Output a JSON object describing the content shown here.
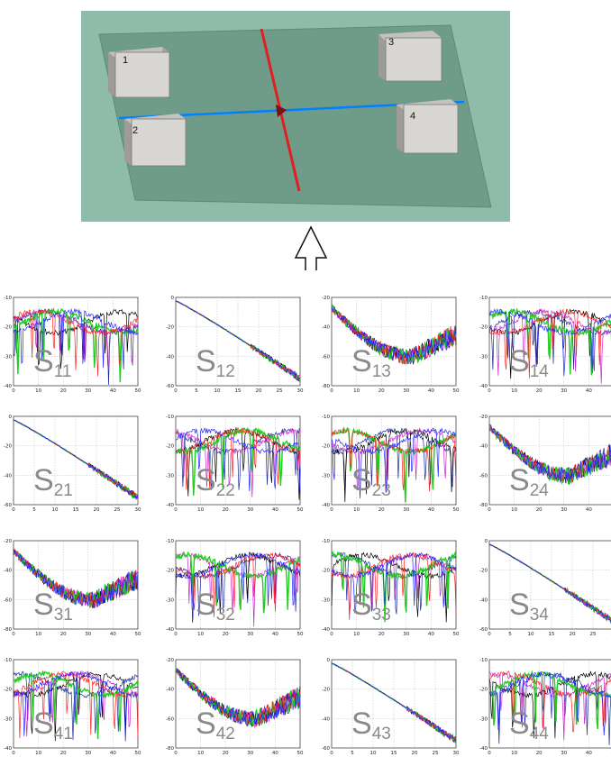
{
  "scene": {
    "ports": [
      "1",
      "2",
      "3",
      "4"
    ],
    "colors": {
      "board": "#6f9c88",
      "board_panel": "#8fbcaa",
      "board_line": "#0080ff",
      "cut_line": "#e02020",
      "box_front": "#d8d6d2",
      "box_top": "#c4c2be",
      "box_side": "#a8a6a2"
    }
  },
  "plots": [
    {
      "id": "S11",
      "label_main": "S",
      "label_sub": "11",
      "type": "osc",
      "ytop": -10,
      "ybot": -40,
      "yticks": [
        "-10",
        "-20",
        "-30",
        "-40"
      ],
      "xticks": [
        "0",
        "10",
        "20",
        "30",
        "40",
        "50"
      ]
    },
    {
      "id": "S12",
      "label_main": "S",
      "label_sub": "12",
      "type": "decay",
      "ytop": 0,
      "ybot": -60,
      "yticks": [
        "0",
        "-20",
        "-40",
        "-60"
      ],
      "xticks": [
        "0",
        "5",
        "10",
        "15",
        "20",
        "25",
        "30"
      ]
    },
    {
      "id": "S13",
      "label_main": "S",
      "label_sub": "13",
      "type": "dip",
      "ytop": -20,
      "ybot": -80,
      "yticks": [
        "-20",
        "-40",
        "-60",
        "-80"
      ],
      "xticks": [
        "0",
        "10",
        "20",
        "30",
        "40",
        "50"
      ]
    },
    {
      "id": "S14",
      "label_main": "S",
      "label_sub": "14",
      "type": "osc",
      "ytop": -10,
      "ybot": -40,
      "yticks": [
        "-10",
        "-20",
        "-30",
        "-40"
      ],
      "xticks": [
        "0",
        "10",
        "20",
        "30",
        "40",
        "50"
      ]
    },
    {
      "id": "S21",
      "label_main": "S",
      "label_sub": "21",
      "type": "decay",
      "ytop": 0,
      "ybot": -60,
      "yticks": [
        "0",
        "-20",
        "-40",
        "-60"
      ],
      "xticks": [
        "0",
        "5",
        "10",
        "15",
        "20",
        "25",
        "30"
      ]
    },
    {
      "id": "S22",
      "label_main": "S",
      "label_sub": "22",
      "type": "osc",
      "ytop": -10,
      "ybot": -40,
      "yticks": [
        "-10",
        "-20",
        "-30",
        "-40"
      ],
      "xticks": [
        "0",
        "10",
        "20",
        "30",
        "40",
        "50"
      ]
    },
    {
      "id": "S23",
      "label_main": "S",
      "label_sub": "23",
      "type": "osc",
      "ytop": -10,
      "ybot": -40,
      "yticks": [
        "-10",
        "-20",
        "-30",
        "-40"
      ],
      "xticks": [
        "0",
        "10",
        "20",
        "30",
        "40",
        "50"
      ]
    },
    {
      "id": "S24",
      "label_main": "S",
      "label_sub": "24",
      "type": "dip",
      "ytop": -20,
      "ybot": -80,
      "yticks": [
        "-20",
        "-40",
        "-60",
        "-80"
      ],
      "xticks": [
        "0",
        "10",
        "20",
        "30",
        "40",
        "50"
      ]
    },
    {
      "id": "S31",
      "label_main": "S",
      "label_sub": "31",
      "type": "dip",
      "ytop": -20,
      "ybot": -80,
      "yticks": [
        "-20",
        "-40",
        "-60",
        "-80"
      ],
      "xticks": [
        "0",
        "10",
        "20",
        "30",
        "40",
        "50"
      ]
    },
    {
      "id": "S32",
      "label_main": "S",
      "label_sub": "32",
      "type": "osc",
      "ytop": -10,
      "ybot": -40,
      "yticks": [
        "-10",
        "-20",
        "-30",
        "-40"
      ],
      "xticks": [
        "0",
        "10",
        "20",
        "30",
        "40",
        "50"
      ]
    },
    {
      "id": "S33",
      "label_main": "S",
      "label_sub": "33",
      "type": "osc",
      "ytop": -10,
      "ybot": -40,
      "yticks": [
        "-10",
        "-20",
        "-30",
        "-40"
      ],
      "xticks": [
        "0",
        "10",
        "20",
        "30",
        "40",
        "50"
      ]
    },
    {
      "id": "S34",
      "label_main": "S",
      "label_sub": "34",
      "type": "decay",
      "ytop": 0,
      "ybot": -60,
      "yticks": [
        "0",
        "-20",
        "-40",
        "-60"
      ],
      "xticks": [
        "0",
        "5",
        "10",
        "15",
        "20",
        "25",
        "30"
      ]
    },
    {
      "id": "S41",
      "label_main": "S",
      "label_sub": "41",
      "type": "osc",
      "ytop": -10,
      "ybot": -40,
      "yticks": [
        "-10",
        "-20",
        "-30",
        "-40"
      ],
      "xticks": [
        "0",
        "10",
        "20",
        "30",
        "40",
        "50"
      ]
    },
    {
      "id": "S42",
      "label_main": "S",
      "label_sub": "42",
      "type": "dip",
      "ytop": -20,
      "ybot": -80,
      "yticks": [
        "-20",
        "-40",
        "-60",
        "-80"
      ],
      "xticks": [
        "0",
        "10",
        "20",
        "30",
        "40",
        "50"
      ]
    },
    {
      "id": "S43",
      "label_main": "S",
      "label_sub": "43",
      "type": "decay",
      "ytop": 0,
      "ybot": -60,
      "yticks": [
        "0",
        "-20",
        "-40",
        "-60"
      ],
      "xticks": [
        "0",
        "5",
        "10",
        "15",
        "20",
        "25",
        "30"
      ]
    },
    {
      "id": "S44",
      "label_main": "S",
      "label_sub": "44",
      "type": "osc",
      "ytop": -10,
      "ybot": -40,
      "yticks": [
        "-10",
        "-20",
        "-30",
        "-40"
      ],
      "xticks": [
        "0",
        "10",
        "20",
        "30",
        "40",
        "50"
      ]
    }
  ],
  "trace_colors": [
    "#1a2a9a",
    "#000000",
    "#cc22cc",
    "#22cc22",
    "#ff2222",
    "#2222ff"
  ]
}
